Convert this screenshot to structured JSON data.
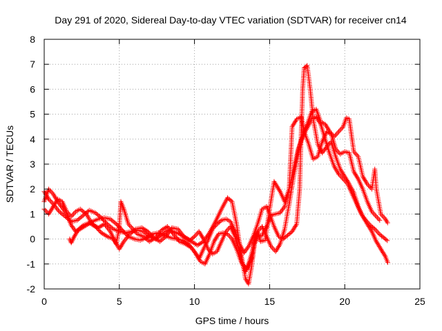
{
  "chart_data": {
    "type": "scatter",
    "title": "Day 291 of 2020, Sidereal Day-to-day VTEC variation (SDTVAR) for receiver cn14",
    "xlabel": "GPS time / hours",
    "ylabel": "SDTVAR / TECUs",
    "xlim": [
      0,
      25
    ],
    "ylim": [
      -2,
      8
    ],
    "x_ticks": [
      0,
      5,
      10,
      15,
      20,
      25
    ],
    "y_ticks": [
      -2,
      -1,
      0,
      1,
      2,
      3,
      4,
      5,
      6,
      7,
      8
    ],
    "grid": true,
    "marker": "+",
    "marker_color": "#ff0000",
    "series": [
      {
        "name": "track-1",
        "points": [
          [
            0.0,
            1.9
          ],
          [
            0.3,
            1.6
          ],
          [
            0.6,
            1.4
          ],
          [
            1.0,
            1.1
          ],
          [
            1.4,
            0.9
          ],
          [
            1.8,
            0.7
          ],
          [
            2.2,
            0.75
          ],
          [
            2.6,
            0.95
          ],
          [
            3.0,
            1.15
          ],
          [
            3.4,
            1.05
          ],
          [
            3.8,
            0.85
          ],
          [
            4.2,
            0.6
          ],
          [
            4.6,
            0.4
          ],
          [
            5.0,
            0.3
          ],
          [
            5.4,
            0.25
          ],
          [
            5.8,
            0.3
          ],
          [
            6.2,
            0.35
          ],
          [
            6.6,
            0.3
          ],
          [
            7.0,
            0.1
          ],
          [
            7.4,
            0.0
          ],
          [
            7.8,
            0.15
          ],
          [
            8.2,
            0.35
          ],
          [
            8.6,
            0.3
          ],
          [
            9.0,
            0.2
          ],
          [
            9.4,
            0.05
          ],
          [
            9.8,
            -0.1
          ],
          [
            10.2,
            -0.25
          ],
          [
            10.6,
            -0.1
          ],
          [
            11.0,
            0.25
          ],
          [
            11.4,
            0.7
          ],
          [
            11.8,
            1.2
          ],
          [
            12.2,
            1.65
          ],
          [
            12.5,
            1.5
          ],
          [
            12.8,
            0.6
          ],
          [
            13.1,
            -0.6
          ],
          [
            13.4,
            -1.6
          ],
          [
            13.6,
            -1.8
          ],
          [
            13.8,
            -1.1
          ],
          [
            14.0,
            -0.2
          ],
          [
            14.2,
            0.1
          ],
          [
            14.5,
            0.15
          ],
          [
            14.8,
            0.5
          ],
          [
            15.1,
            0.95
          ],
          [
            15.4,
            1.0
          ],
          [
            15.7,
            1.05
          ],
          [
            16.0,
            1.3
          ],
          [
            16.3,
            2.0
          ],
          [
            16.6,
            2.8
          ],
          [
            16.9,
            3.6
          ],
          [
            17.2,
            4.1
          ],
          [
            17.5,
            4.45
          ],
          [
            17.8,
            4.8
          ],
          [
            18.1,
            4.9
          ],
          [
            18.4,
            4.6
          ],
          [
            18.7,
            4.0
          ],
          [
            19.0,
            3.4
          ],
          [
            19.3,
            2.9
          ],
          [
            19.6,
            2.6
          ],
          [
            19.9,
            2.4
          ],
          [
            20.2,
            2.2
          ],
          [
            20.5,
            1.8
          ],
          [
            20.8,
            1.4
          ],
          [
            21.1,
            1.0
          ],
          [
            21.4,
            0.75
          ],
          [
            21.7,
            0.55
          ],
          [
            22.0,
            0.4
          ],
          [
            22.3,
            0.2
          ],
          [
            22.6,
            0.05
          ],
          [
            22.9,
            -0.1
          ]
        ]
      },
      {
        "name": "track-2",
        "points": [
          [
            0.0,
            1.5
          ],
          [
            0.3,
            2.0
          ],
          [
            0.6,
            1.8
          ],
          [
            0.9,
            1.5
          ],
          [
            1.2,
            1.25
          ],
          [
            1.5,
            1.0
          ],
          [
            1.8,
            0.55
          ],
          [
            2.1,
            0.3
          ],
          [
            2.4,
            0.4
          ],
          [
            2.8,
            0.55
          ],
          [
            3.2,
            0.7
          ],
          [
            3.6,
            0.8
          ],
          [
            4.0,
            0.85
          ],
          [
            4.4,
            0.8
          ],
          [
            4.8,
            0.6
          ],
          [
            5.2,
            0.35
          ],
          [
            5.6,
            0.1
          ],
          [
            6.0,
            0.0
          ],
          [
            6.4,
            -0.05
          ],
          [
            6.8,
            0.05
          ],
          [
            7.2,
            0.2
          ],
          [
            7.6,
            0.25
          ],
          [
            8.0,
            0.15
          ],
          [
            8.4,
            0.05
          ],
          [
            8.8,
            0.0
          ],
          [
            9.2,
            -0.05
          ],
          [
            9.6,
            -0.2
          ],
          [
            10.0,
            -0.5
          ],
          [
            10.3,
            -0.8
          ],
          [
            10.6,
            -0.4
          ],
          [
            10.9,
            -0.05
          ],
          [
            11.2,
            0.4
          ],
          [
            11.5,
            0.6
          ],
          [
            11.8,
            0.75
          ],
          [
            12.1,
            0.8
          ],
          [
            12.4,
            0.7
          ],
          [
            12.7,
            0.3
          ],
          [
            13.0,
            -0.2
          ],
          [
            13.3,
            -0.55
          ],
          [
            13.6,
            -0.3
          ],
          [
            13.9,
            0.1
          ],
          [
            14.2,
            0.6
          ],
          [
            14.5,
            1.2
          ],
          [
            14.8,
            1.3
          ],
          [
            15.0,
            1.0
          ],
          [
            15.3,
            0.5
          ],
          [
            15.6,
            0.1
          ],
          [
            15.9,
            0.0
          ],
          [
            16.2,
            0.15
          ],
          [
            16.5,
            0.3
          ],
          [
            16.8,
            0.6
          ],
          [
            17.0,
            2.0
          ],
          [
            17.1,
            4.2
          ],
          [
            17.2,
            6.0
          ],
          [
            17.3,
            6.85
          ],
          [
            17.5,
            6.95
          ],
          [
            17.7,
            6.0
          ],
          [
            17.9,
            4.8
          ],
          [
            18.2,
            3.8
          ],
          [
            18.5,
            3.45
          ],
          [
            18.8,
            3.7
          ],
          [
            19.1,
            3.9
          ],
          [
            19.4,
            3.3
          ],
          [
            19.7,
            2.8
          ],
          [
            20.0,
            2.5
          ],
          [
            20.3,
            2.2
          ],
          [
            20.6,
            1.85
          ],
          [
            20.9,
            1.3
          ],
          [
            21.2,
            0.9
          ],
          [
            21.5,
            0.6
          ],
          [
            21.8,
            0.3
          ],
          [
            22.1,
            -0.1
          ],
          [
            22.4,
            -0.4
          ],
          [
            22.7,
            -0.7
          ],
          [
            22.9,
            -1.0
          ]
        ]
      },
      {
        "name": "track-3",
        "points": [
          [
            0.0,
            1.2
          ],
          [
            0.3,
            1.0
          ],
          [
            0.6,
            1.3
          ],
          [
            0.9,
            1.6
          ],
          [
            1.2,
            1.5
          ],
          [
            1.5,
            1.1
          ],
          [
            1.8,
            0.9
          ],
          [
            2.1,
            1.1
          ],
          [
            2.4,
            1.2
          ],
          [
            2.8,
            1.0
          ],
          [
            3.2,
            0.6
          ],
          [
            3.6,
            0.45
          ],
          [
            4.0,
            0.6
          ],
          [
            4.4,
            0.3
          ],
          [
            4.8,
            -0.2
          ],
          [
            5.0,
            0.5
          ],
          [
            5.1,
            1.5
          ],
          [
            5.3,
            1.2
          ],
          [
            5.6,
            0.6
          ],
          [
            5.9,
            0.4
          ],
          [
            6.2,
            0.2
          ],
          [
            6.6,
            0.1
          ],
          [
            7.0,
            -0.1
          ],
          [
            7.4,
            0.05
          ],
          [
            7.8,
            0.35
          ],
          [
            8.2,
            0.5
          ],
          [
            8.6,
            0.2
          ],
          [
            9.0,
            -0.1
          ],
          [
            9.4,
            -0.2
          ],
          [
            9.8,
            -0.35
          ],
          [
            10.1,
            -0.6
          ],
          [
            10.4,
            -0.9
          ],
          [
            10.7,
            -1.0
          ],
          [
            11.0,
            -0.6
          ],
          [
            11.3,
            -0.1
          ],
          [
            11.6,
            0.2
          ],
          [
            11.9,
            0.25
          ],
          [
            12.2,
            0.2
          ],
          [
            12.5,
            0.0
          ],
          [
            12.8,
            -0.4
          ],
          [
            13.1,
            -0.9
          ],
          [
            13.4,
            -1.3
          ],
          [
            13.6,
            -1.0
          ],
          [
            13.8,
            -0.6
          ],
          [
            14.0,
            -0.1
          ],
          [
            14.2,
            0.3
          ],
          [
            14.5,
            0.5
          ],
          [
            14.8,
            0.1
          ],
          [
            15.1,
            -0.3
          ],
          [
            15.4,
            -0.5
          ],
          [
            15.7,
            -0.2
          ],
          [
            16.0,
            0.4
          ],
          [
            16.3,
            1.4
          ],
          [
            16.6,
            2.5
          ],
          [
            16.9,
            3.5
          ],
          [
            17.2,
            4.2
          ],
          [
            17.5,
            4.6
          ],
          [
            17.8,
            5.1
          ],
          [
            18.1,
            5.2
          ],
          [
            18.4,
            4.7
          ],
          [
            18.7,
            4.6
          ],
          [
            19.0,
            4.3
          ],
          [
            19.3,
            4.1
          ],
          [
            19.6,
            4.3
          ],
          [
            19.9,
            4.5
          ],
          [
            20.1,
            4.85
          ],
          [
            20.3,
            4.8
          ],
          [
            20.6,
            3.5
          ],
          [
            20.9,
            3.3
          ],
          [
            21.2,
            2.5
          ],
          [
            21.5,
            2.2
          ],
          [
            21.8,
            2.0
          ],
          [
            22.0,
            2.8
          ],
          [
            22.1,
            2.0
          ],
          [
            22.4,
            1.0
          ],
          [
            22.7,
            0.8
          ],
          [
            22.9,
            0.6
          ]
        ]
      },
      {
        "name": "track-4",
        "points": [
          [
            1.7,
            0.0
          ],
          [
            1.8,
            -0.15
          ],
          [
            2.0,
            0.1
          ],
          [
            2.3,
            0.4
          ],
          [
            2.6,
            0.55
          ],
          [
            3.0,
            0.65
          ],
          [
            3.4,
            0.5
          ],
          [
            3.8,
            0.25
          ],
          [
            4.2,
            0.1
          ],
          [
            4.6,
            0.0
          ],
          [
            5.0,
            -0.4
          ],
          [
            5.3,
            -0.1
          ],
          [
            5.7,
            0.2
          ],
          [
            6.1,
            0.4
          ],
          [
            6.5,
            0.45
          ],
          [
            6.9,
            0.3
          ],
          [
            7.3,
            0.05
          ],
          [
            7.7,
            -0.1
          ],
          [
            8.1,
            0.1
          ],
          [
            8.5,
            0.45
          ],
          [
            8.9,
            0.4
          ],
          [
            9.3,
            0.1
          ],
          [
            9.7,
            -0.05
          ],
          [
            10.0,
            0.1
          ],
          [
            10.3,
            0.3
          ],
          [
            10.6,
            0.0
          ],
          [
            10.9,
            -0.4
          ],
          [
            11.2,
            -0.6
          ],
          [
            11.5,
            -0.5
          ],
          [
            11.8,
            -0.1
          ],
          [
            12.1,
            0.3
          ],
          [
            12.4,
            0.5
          ],
          [
            12.7,
            0.1
          ],
          [
            13.0,
            -0.5
          ],
          [
            13.2,
            -1.0
          ],
          [
            13.5,
            -1.2
          ],
          [
            13.8,
            -0.8
          ],
          [
            14.0,
            0.05
          ],
          [
            14.2,
            0.3
          ],
          [
            14.4,
            -0.1
          ],
          [
            14.7,
            -0.05
          ],
          [
            15.0,
            1.2
          ],
          [
            15.3,
            2.3
          ],
          [
            15.5,
            2.1
          ],
          [
            15.7,
            1.9
          ],
          [
            16.0,
            1.5
          ],
          [
            16.3,
            2.0
          ],
          [
            16.5,
            4.5
          ],
          [
            16.8,
            4.8
          ],
          [
            17.1,
            4.9
          ],
          [
            17.3,
            4.3
          ],
          [
            17.6,
            3.8
          ],
          [
            17.9,
            3.2
          ],
          [
            18.2,
            3.3
          ],
          [
            18.5,
            3.9
          ],
          [
            18.8,
            4.3
          ],
          [
            19.1,
            4.2
          ],
          [
            19.4,
            3.6
          ],
          [
            19.7,
            3.4
          ],
          [
            20.0,
            3.5
          ],
          [
            20.3,
            3.45
          ],
          [
            20.6,
            2.7
          ],
          [
            20.9,
            2.4
          ],
          [
            21.2,
            2.0
          ],
          [
            21.5,
            1.5
          ],
          [
            21.8,
            1.1
          ],
          [
            22.1,
            0.9
          ],
          [
            22.4,
            0.7
          ]
        ]
      }
    ]
  }
}
